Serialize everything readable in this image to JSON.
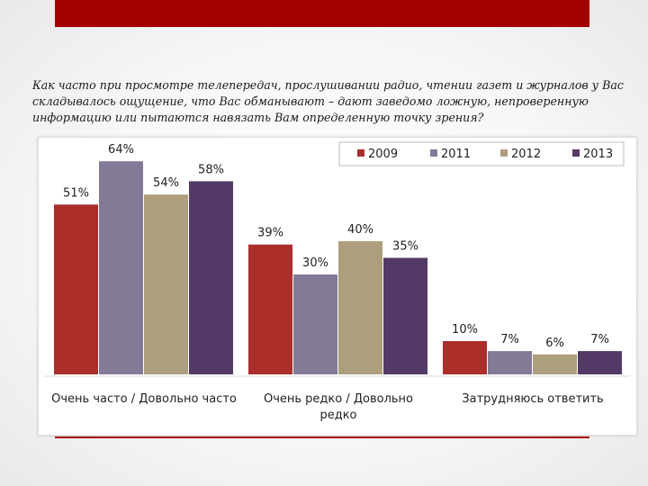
{
  "question": "Как часто при просмотре телепередач, прослушивании радио, чтении газет и журналов у Вас складывалось ощущение, что Вас обманывают – дают заведомо ложную, непроверенную информацию или пытаются навязать Вам определенную точку зрения?",
  "colors": {
    "band": "#a30000",
    "s2009": "#ab2e2a",
    "s2011": "#837a97",
    "s2012": "#ad9f7d",
    "s2013": "#533a66"
  },
  "chart_data": {
    "type": "bar",
    "title": "",
    "xlabel": "",
    "ylabel": "",
    "ylim": [
      0,
      100
    ],
    "grid": false,
    "legend": "top-right",
    "categories": [
      [
        "Очень часто / Довольно часто"
      ],
      [
        "Очень редко / Довольно",
        "редко"
      ],
      [
        "Затрудняюсь ответить"
      ]
    ],
    "series": [
      {
        "name": "2009",
        "color": "#ab2e2a",
        "values": [
          51,
          39,
          10
        ],
        "labels": [
          "51%",
          "39%",
          "10%"
        ]
      },
      {
        "name": "2011",
        "color": "#837a97",
        "values": [
          64,
          30,
          7
        ],
        "labels": [
          "64%",
          "30%",
          "7%"
        ]
      },
      {
        "name": "2012",
        "color": "#ad9f7d",
        "values": [
          54,
          40,
          6
        ],
        "labels": [
          "54%",
          "40%",
          "6%"
        ]
      },
      {
        "name": "2013",
        "color": "#533a66",
        "values": [
          58,
          35,
          7
        ],
        "labels": [
          "58%",
          "35%",
          "7%"
        ]
      }
    ]
  }
}
